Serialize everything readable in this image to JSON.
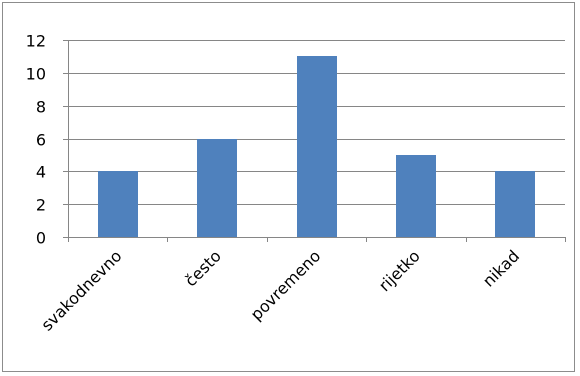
{
  "chart_data": {
    "type": "bar",
    "categories": [
      "svakodnevno",
      "često",
      "povremeno",
      "rijetko",
      "nikad"
    ],
    "values": [
      4,
      6,
      11,
      5,
      4
    ],
    "title": "",
    "xlabel": "",
    "ylabel": "",
    "ylim": [
      0,
      12
    ],
    "yticks": [
      0,
      2,
      4,
      6,
      8,
      10,
      12
    ],
    "grid": true,
    "legend": "none",
    "bar_color": "#4F81BD",
    "grid_color": "#868686"
  }
}
